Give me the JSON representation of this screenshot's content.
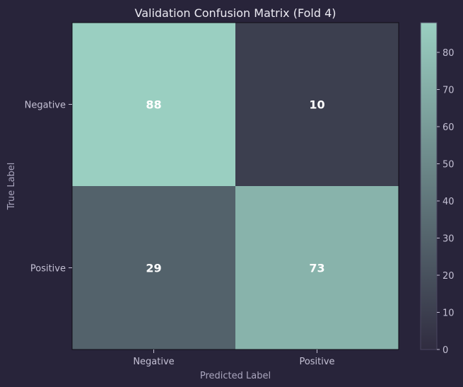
{
  "chart_data": {
    "type": "heatmap",
    "title": "Validation Confusion Matrix (Fold 4)",
    "xlabel": "Predicted Label",
    "ylabel": "True Label",
    "x_categories": [
      "Negative",
      "Positive"
    ],
    "y_categories": [
      "Negative",
      "Positive"
    ],
    "values": [
      [
        88,
        10
      ],
      [
        29,
        73
      ]
    ],
    "colorbar": {
      "min": 0,
      "max": 88,
      "ticks": [
        0,
        10,
        20,
        30,
        40,
        50,
        60,
        70,
        80
      ],
      "low_color": "#302c40",
      "high_color": "#9acfc1"
    },
    "grid": false
  }
}
